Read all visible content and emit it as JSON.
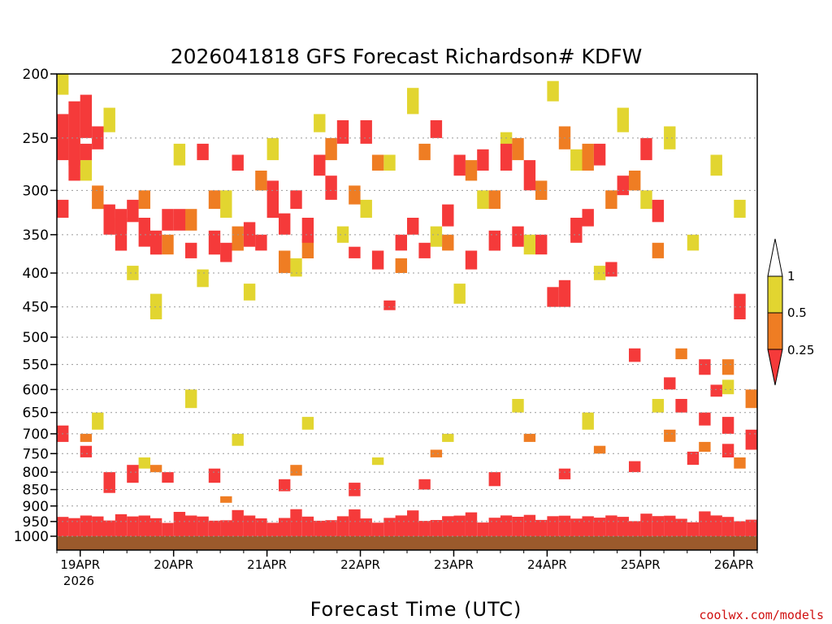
{
  "chart_data": {
    "type": "heatmap",
    "title": "2026041818 GFS Forecast Richardson# KDFW",
    "xlabel": "Forecast Time (UTC)",
    "ylabel": "",
    "credit": "coolwx.com/models",
    "y_axis": {
      "scale": "log-pressure",
      "inverted": true,
      "ylim": [
        1000,
        200
      ],
      "ticks": [
        200,
        250,
        300,
        350,
        400,
        450,
        500,
        550,
        600,
        650,
        700,
        750,
        800,
        850,
        900,
        950,
        1000
      ],
      "tick_labels": [
        "200",
        "250",
        "300",
        "350",
        "400",
        "450",
        "500",
        "550",
        "600",
        "650",
        "700",
        "750",
        "800",
        "850",
        "900",
        "950",
        "1000"
      ]
    },
    "x_axis": {
      "units": "hours since 2026041818",
      "xlim": [
        0,
        180
      ],
      "ticks": [
        6,
        30,
        54,
        78,
        102,
        126,
        150,
        174
      ],
      "tick_labels": [
        "19APR",
        "20APR",
        "21APR",
        "22APR",
        "23APR",
        "24APR",
        "25APR",
        "26APR"
      ],
      "year_label": "2026"
    },
    "grid": true,
    "colorbar": {
      "labels": [
        "1",
        "0.5",
        "0.25"
      ],
      "bins": [
        {
          "range": "0.5-1",
          "color": "#e2d530"
        },
        {
          "range": "0.25-0.5",
          "color": "#ef7d23"
        },
        {
          "range": "<0.25",
          "color": "#f53a3a"
        }
      ]
    },
    "colors": {
      "low": "#f53a3a",
      "mid": "#ef7d23",
      "high": "#e2d530",
      "ground": "#9b5a2c"
    },
    "cells": [
      [
        0,
        3,
        230,
        270
      ],
      [
        0,
        3,
        310,
        330
      ],
      [
        3,
        6,
        240,
        290
      ],
      [
        3,
        6,
        220,
        240
      ],
      [
        6,
        9,
        215,
        250
      ],
      [
        6,
        9,
        255,
        270
      ],
      [
        9,
        12,
        240,
        260
      ],
      [
        12,
        15,
        315,
        350
      ],
      [
        15,
        18,
        320,
        370
      ],
      [
        18,
        21,
        310,
        335
      ],
      [
        21,
        24,
        330,
        365
      ],
      [
        24,
        27,
        345,
        375
      ],
      [
        27,
        30,
        320,
        345
      ],
      [
        30,
        33,
        320,
        345
      ],
      [
        33,
        36,
        360,
        380
      ],
      [
        36,
        39,
        255,
        270
      ],
      [
        39,
        42,
        345,
        375
      ],
      [
        42,
        45,
        360,
        385
      ],
      [
        45,
        48,
        265,
        280
      ],
      [
        48,
        51,
        335,
        365
      ],
      [
        51,
        54,
        350,
        370
      ],
      [
        54,
        57,
        290,
        330
      ],
      [
        57,
        60,
        325,
        350
      ],
      [
        60,
        63,
        300,
        320
      ],
      [
        63,
        66,
        330,
        360
      ],
      [
        66,
        69,
        265,
        285
      ],
      [
        69,
        72,
        285,
        310
      ],
      [
        72,
        75,
        235,
        255
      ],
      [
        75,
        78,
        365,
        380
      ],
      [
        78,
        81,
        235,
        255
      ],
      [
        81,
        84,
        370,
        395
      ],
      [
        84,
        87,
        440,
        455
      ],
      [
        87,
        90,
        350,
        370
      ],
      [
        90,
        93,
        330,
        350
      ],
      [
        93,
        96,
        360,
        380
      ],
      [
        96,
        99,
        235,
        250
      ],
      [
        99,
        102,
        315,
        340
      ],
      [
        102,
        105,
        265,
        285
      ],
      [
        105,
        108,
        370,
        395
      ],
      [
        108,
        111,
        260,
        280
      ],
      [
        111,
        114,
        345,
        370
      ],
      [
        114,
        117,
        255,
        280
      ],
      [
        117,
        120,
        340,
        365
      ],
      [
        120,
        123,
        270,
        300
      ],
      [
        123,
        126,
        350,
        375
      ],
      [
        126,
        129,
        420,
        450
      ],
      [
        129,
        132,
        410,
        450
      ],
      [
        132,
        135,
        330,
        360
      ],
      [
        135,
        138,
        320,
        340
      ],
      [
        138,
        141,
        255,
        275
      ],
      [
        141,
        144,
        385,
        405
      ],
      [
        144,
        147,
        285,
        305
      ],
      [
        147,
        150,
        520,
        545
      ],
      [
        150,
        153,
        250,
        270
      ],
      [
        153,
        156,
        310,
        335
      ],
      [
        156,
        159,
        575,
        600
      ],
      [
        159,
        162,
        620,
        650
      ],
      [
        162,
        165,
        745,
        780
      ],
      [
        165,
        168,
        540,
        570
      ],
      [
        168,
        171,
        590,
        615
      ],
      [
        171,
        174,
        660,
        700
      ],
      [
        174,
        177,
        430,
        470
      ],
      [
        177,
        180,
        690,
        740
      ],
      [
        0,
        3,
        680,
        720
      ],
      [
        6,
        9,
        730,
        760
      ],
      [
        12,
        15,
        800,
        860
      ],
      [
        18,
        21,
        780,
        830
      ],
      [
        27,
        30,
        800,
        830
      ],
      [
        39,
        42,
        790,
        830
      ],
      [
        57,
        60,
        820,
        855
      ],
      [
        75,
        78,
        830,
        870
      ],
      [
        93,
        96,
        820,
        850
      ],
      [
        111,
        114,
        800,
        840
      ],
      [
        129,
        132,
        790,
        820
      ],
      [
        147,
        150,
        770,
        800
      ],
      [
        165,
        168,
        650,
        680
      ],
      [
        171,
        174,
        725,
        760
      ]
    ],
    "cells_mid": [
      [
        3,
        6,
        250,
        275
      ],
      [
        9,
        12,
        295,
        320
      ],
      [
        15,
        18,
        330,
        345
      ],
      [
        21,
        24,
        300,
        320
      ],
      [
        27,
        30,
        350,
        375
      ],
      [
        33,
        36,
        320,
        345
      ],
      [
        39,
        42,
        300,
        320
      ],
      [
        45,
        48,
        340,
        370
      ],
      [
        51,
        54,
        280,
        300
      ],
      [
        57,
        60,
        370,
        400
      ],
      [
        63,
        66,
        355,
        380
      ],
      [
        69,
        72,
        250,
        270
      ],
      [
        75,
        78,
        295,
        315
      ],
      [
        81,
        84,
        265,
        280
      ],
      [
        87,
        90,
        380,
        400
      ],
      [
        93,
        96,
        255,
        270
      ],
      [
        99,
        102,
        350,
        370
      ],
      [
        105,
        108,
        270,
        290
      ],
      [
        111,
        114,
        300,
        320
      ],
      [
        117,
        120,
        250,
        270
      ],
      [
        123,
        126,
        290,
        310
      ],
      [
        129,
        132,
        240,
        260
      ],
      [
        135,
        138,
        255,
        280
      ],
      [
        141,
        144,
        300,
        320
      ],
      [
        147,
        150,
        280,
        300
      ],
      [
        153,
        156,
        360,
        380
      ],
      [
        159,
        162,
        520,
        540
      ],
      [
        165,
        168,
        720,
        745
      ],
      [
        171,
        174,
        540,
        570
      ],
      [
        177,
        180,
        600,
        640
      ],
      [
        6,
        9,
        700,
        720
      ],
      [
        24,
        27,
        780,
        800
      ],
      [
        42,
        45,
        870,
        890
      ],
      [
        60,
        63,
        780,
        810
      ],
      [
        96,
        99,
        740,
        760
      ],
      [
        120,
        123,
        700,
        720
      ],
      [
        138,
        141,
        730,
        750
      ],
      [
        156,
        159,
        690,
        720
      ],
      [
        174,
        177,
        760,
        790
      ]
    ],
    "cells_high": [
      [
        0,
        3,
        200,
        215
      ],
      [
        6,
        9,
        270,
        290
      ],
      [
        12,
        15,
        225,
        245
      ],
      [
        18,
        21,
        390,
        410
      ],
      [
        24,
        27,
        430,
        470
      ],
      [
        30,
        33,
        255,
        275
      ],
      [
        36,
        39,
        395,
        420
      ],
      [
        42,
        45,
        300,
        330
      ],
      [
        48,
        51,
        415,
        440
      ],
      [
        54,
        57,
        250,
        270
      ],
      [
        60,
        63,
        380,
        405
      ],
      [
        66,
        69,
        230,
        245
      ],
      [
        72,
        75,
        340,
        360
      ],
      [
        78,
        81,
        310,
        330
      ],
      [
        84,
        87,
        265,
        280
      ],
      [
        90,
        93,
        210,
        230
      ],
      [
        96,
        99,
        340,
        365
      ],
      [
        102,
        105,
        415,
        445
      ],
      [
        108,
        111,
        300,
        320
      ],
      [
        114,
        117,
        245,
        260
      ],
      [
        120,
        123,
        350,
        375
      ],
      [
        126,
        129,
        205,
        220
      ],
      [
        132,
        135,
        260,
        280
      ],
      [
        138,
        141,
        390,
        410
      ],
      [
        144,
        147,
        225,
        245
      ],
      [
        150,
        153,
        300,
        320
      ],
      [
        156,
        159,
        240,
        260
      ],
      [
        162,
        165,
        350,
        370
      ],
      [
        168,
        171,
        265,
        285
      ],
      [
        174,
        177,
        310,
        330
      ],
      [
        9,
        12,
        650,
        690
      ],
      [
        21,
        24,
        760,
        790
      ],
      [
        33,
        36,
        600,
        640
      ],
      [
        45,
        48,
        700,
        730
      ],
      [
        63,
        66,
        660,
        690
      ],
      [
        81,
        84,
        760,
        780
      ],
      [
        99,
        102,
        700,
        720
      ],
      [
        117,
        120,
        620,
        650
      ],
      [
        135,
        138,
        650,
        690
      ],
      [
        153,
        156,
        620,
        650
      ],
      [
        171,
        174,
        580,
        610
      ]
    ]
  }
}
